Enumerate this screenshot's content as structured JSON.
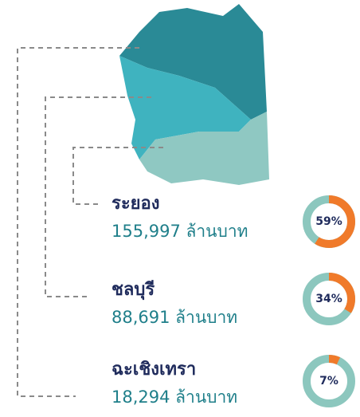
{
  "regions": [
    {
      "name": "ระยอง",
      "value": "155,997 ล้านบาท",
      "percent": 59,
      "percent_label": "59%"
    },
    {
      "name": "ชลบุรี",
      "value": "88,691 ล้านบาท",
      "percent": 34,
      "percent_label": "34%"
    },
    {
      "name": "ฉะเชิงเทรา",
      "value": "18,294 ล้านบาท",
      "percent": 7,
      "percent_label": "7%"
    }
  ]
}
